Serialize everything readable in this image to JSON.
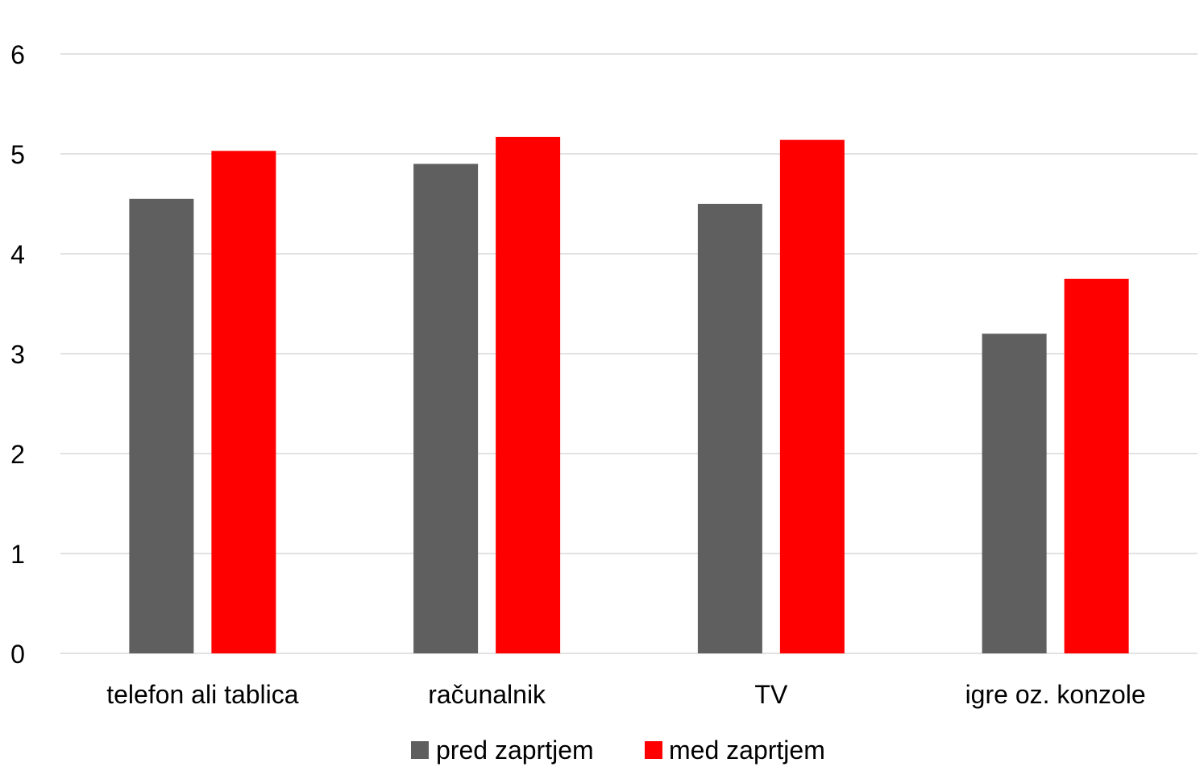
{
  "chart_data": {
    "type": "bar",
    "categories": [
      "telefon ali tablica",
      "računalnik",
      "TV",
      "igre oz. konzole"
    ],
    "series": [
      {
        "name": "pred zaprtjem",
        "color": "#5f5f5f",
        "values": [
          4.55,
          4.9,
          4.5,
          3.2
        ]
      },
      {
        "name": "med zaprtjem",
        "color": "#ff0000",
        "values": [
          5.03,
          5.17,
          5.14,
          3.75
        ]
      }
    ],
    "ylim": [
      0,
      6
    ],
    "yticks": [
      "0",
      "1",
      "2",
      "3",
      "4",
      "5",
      "6"
    ],
    "grid": true,
    "legend_position": "bottom",
    "title": "",
    "xlabel": "",
    "ylabel": ""
  }
}
